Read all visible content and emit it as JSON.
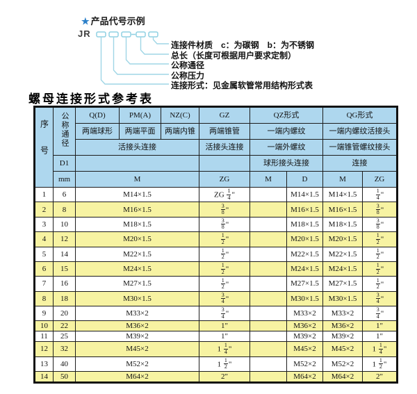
{
  "diagram": {
    "star": "★",
    "heading": "产品代号示例",
    "code_prefix": "JR",
    "labels": [
      "连接件材质　c：为碳钢　b：为不锈钢",
      "总长（长度可根据用户要求定制）",
      "公称通径",
      "公称压力",
      "连接形式：见金属软管常用结构形式表"
    ]
  },
  "table": {
    "title": "螺母连接形式参考表",
    "header": {
      "col_no": "序号",
      "col_dn": "公称通径",
      "d1": "D1",
      "mm": "mm",
      "groups": [
        "Q(D)",
        "PM(A)",
        "NZ(C)",
        "GZ",
        "QZ形式",
        "QG形式"
      ],
      "row2": [
        "两端球形",
        "两端平面",
        "两端内锥",
        "两端锥管",
        "一端内螺纹",
        "一端内螺纹活接头"
      ],
      "row3": [
        "活接头连接",
        "活接头连接",
        "一端外螺纹",
        "一端锥管螺纹接头"
      ],
      "row4": [
        "球形接头连接",
        "连接"
      ],
      "row5": [
        "M",
        "ZG",
        "M",
        "D",
        "M",
        "ZG"
      ]
    },
    "rows": [
      [
        "1",
        "6",
        "M14×1.5",
        "ZG 1/4\"",
        "",
        "M14×1.5",
        "M14×1.5",
        "1/4\""
      ],
      [
        "2",
        "8",
        "M16×1.5",
        "3/8\"",
        "",
        "M16×1.5",
        "M16×1.5",
        "3/8\""
      ],
      [
        "3",
        "10",
        "M18×1.5",
        "3/8\"",
        "",
        "M18×1.5",
        "M18×1.5",
        "3/8\""
      ],
      [
        "4",
        "12",
        "M20×1.5",
        "1/2\"",
        "",
        "M20×1.5",
        "M20×1.5",
        "1/2\""
      ],
      [
        "5",
        "14",
        "M22×1.5",
        "1/2\"",
        "",
        "M22×1.5",
        "M22×1.5",
        "1/2\""
      ],
      [
        "6",
        "15",
        "M24×1.5",
        "1/2\"",
        "",
        "M24×1.5",
        "M24×1.5",
        "1/2\""
      ],
      [
        "7",
        "16",
        "M27×1.5",
        "1/2\"",
        "",
        "M27×1.5",
        "M27×1.5",
        "1/2\""
      ],
      [
        "8",
        "18",
        "M30×1.5",
        "3/4\"",
        "",
        "M30×1.5",
        "M30×1.5",
        "3/4\""
      ],
      [
        "9",
        "20",
        "M33×2",
        "3/4\"",
        "",
        "M33×2",
        "M33×2",
        "3/4\""
      ],
      [
        "10",
        "22",
        "M36×2",
        "1\"",
        "",
        "M36×2",
        "M36×2",
        "1\""
      ],
      [
        "11",
        "25",
        "M39×2",
        "1\"",
        "",
        "M39×2",
        "M39×2",
        "1\""
      ],
      [
        "12",
        "32",
        "M45×2",
        "1 1/4\"",
        "",
        "M45×2",
        "M45×2",
        "1 1/4\""
      ],
      [
        "13",
        "40",
        "M52×2",
        "1 1/2\"",
        "",
        "M52×2",
        "M52×2",
        "1 1/2\""
      ],
      [
        "14",
        "50",
        "M64×2",
        "2\"",
        "",
        "M64×2",
        "M64×2",
        "2\""
      ]
    ]
  },
  "colors": {
    "header_bg": "#aed7ee",
    "alt_row_bg": "#f7f3a2",
    "grid_line": "#1c1c1c",
    "diagram_line": "#9fd6e6",
    "star_blue": "#2a7fc9"
  }
}
